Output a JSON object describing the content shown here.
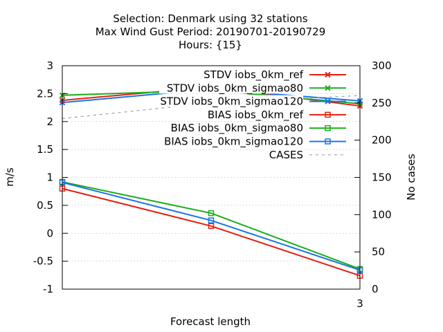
{
  "chart_data": {
    "type": "line",
    "title_lines": [
      "Selection: Denmark using    32 stations",
      "Max Wind Gust   Period: 20190701-20190729",
      "Hours: {15}"
    ],
    "xlabel": "Forecast length",
    "ylabel": "m/s",
    "y2label": "No cases",
    "xlim": [
      0,
      3
    ],
    "x_ticks": [
      {
        "value": 3,
        "label": "3"
      }
    ],
    "ylim": [
      -1,
      3
    ],
    "y_ticks": [
      {
        "value": 3,
        "label": "3"
      },
      {
        "value": 2.5,
        "label": "2.5"
      },
      {
        "value": 2,
        "label": "2"
      },
      {
        "value": 1.5,
        "label": "1.5"
      },
      {
        "value": 1,
        "label": "1"
      },
      {
        "value": 0.5,
        "label": "0.5"
      },
      {
        "value": 0,
        "label": "0"
      },
      {
        "value": -0.5,
        "label": "-0.5"
      },
      {
        "value": -1,
        "label": "-1"
      }
    ],
    "y2lim": [
      0,
      300
    ],
    "y2_ticks": [
      {
        "value": 300,
        "label": "300"
      },
      {
        "value": 250,
        "label": "250"
      },
      {
        "value": 200,
        "label": "200"
      },
      {
        "value": 150,
        "label": "150"
      },
      {
        "value": 100,
        "label": "100"
      },
      {
        "value": 50,
        "label": "50"
      },
      {
        "value": 0,
        "label": "0"
      }
    ],
    "grid": true,
    "legend_position": "top-right",
    "series": [
      {
        "name": "STDV iobs_0km_ref",
        "color": "#e51e10",
        "marker": "x",
        "axis": "y",
        "x": [
          0,
          1.5,
          3
        ],
        "y": [
          2.38,
          2.62,
          2.28
        ]
      },
      {
        "name": "STDV iobs_0km_sigmao80",
        "color": "#1aad1a",
        "marker": "x",
        "axis": "y",
        "x": [
          0,
          1.5,
          3
        ],
        "y": [
          2.47,
          2.56,
          2.32
        ]
      },
      {
        "name": "STDV iobs_0km_sigmao120",
        "color": "#1a73e6",
        "marker": "x",
        "axis": "y",
        "x": [
          0,
          1.5,
          3
        ],
        "y": [
          2.34,
          2.58,
          2.37
        ]
      },
      {
        "name": "BIAS iobs_0km_ref",
        "color": "#e51e10",
        "marker": "square",
        "axis": "y",
        "x": [
          0,
          1.5,
          3
        ],
        "y": [
          0.8,
          0.13,
          -0.76
        ]
      },
      {
        "name": "BIAS iobs_0km_sigmao80",
        "color": "#1aad1a",
        "marker": "square",
        "axis": "y",
        "x": [
          0,
          1.5,
          3
        ],
        "y": [
          0.92,
          0.36,
          -0.64
        ]
      },
      {
        "name": "BIAS iobs_0km_sigmao120",
        "color": "#1a73e6",
        "marker": "square",
        "axis": "y",
        "x": [
          0,
          1.5,
          3
        ],
        "y": [
          0.91,
          0.23,
          -0.66
        ]
      },
      {
        "name": "CASES",
        "color": "#a0a0a0",
        "marker": "none",
        "dashed": true,
        "axis": "y2",
        "x": [
          0,
          1.5,
          3
        ],
        "y": [
          229,
          250,
          260
        ]
      }
    ]
  }
}
